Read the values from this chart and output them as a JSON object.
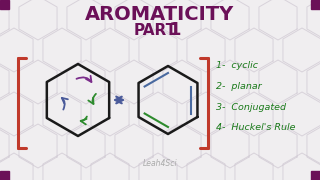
{
  "bg_color": "#f0eef0",
  "title_line1": "AROMATICITY",
  "title_line2": "PART 1",
  "title_color": "#6b1058",
  "bracket_color": "#c0392b",
  "hexagon_color": "#1a1a1a",
  "resonance_arrow_color": "#4a5a9a",
  "list_color": "#1a7a1a",
  "list_items": [
    "1-  cyclic",
    "2-  planar",
    "3-  Conjugated",
    "4-  Huckel's Rule"
  ],
  "watermark": "Leah4Sci",
  "watermark_color": "#aaaaaa",
  "corner_color": "#6b1058",
  "purple_arrow": "#7b2d8b",
  "green_arrow": "#2e8b2e",
  "blue_arrow": "#4a5a9a",
  "double_bond_blue": "#4a6aa0",
  "double_bond_green": "#2e8b2e"
}
